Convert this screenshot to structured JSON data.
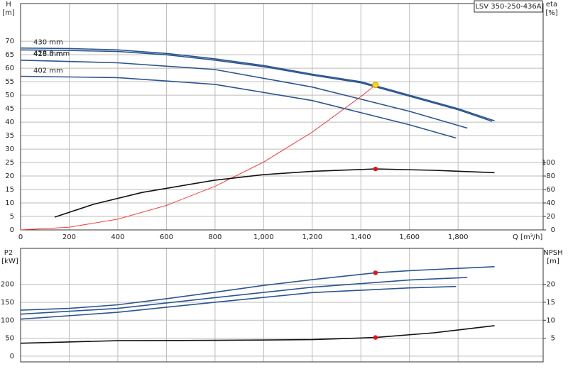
{
  "chart_data": [
    {
      "type": "line",
      "annotation": "LSV 350-250-436A",
      "xlabel": "Q [m³/h]",
      "ylabel": "H",
      "yunit": "[m]",
      "y2label": "eta",
      "y2unit": "[%]",
      "xlim": [
        0,
        2150
      ],
      "xticks": [
        0,
        200,
        400,
        600,
        800,
        {
          "value": 1000,
          "label": "1,000"
        },
        {
          "value": 1200,
          "label": "1,200"
        },
        {
          "value": 1400,
          "label": "1,400"
        },
        {
          "value": 1600,
          "label": "1,600"
        },
        {
          "value": 1800,
          "label": "1,800"
        }
      ],
      "ylim": [
        0,
        84
      ],
      "yticks": [
        0,
        5,
        10,
        15,
        20,
        25,
        30,
        35,
        40,
        45,
        50,
        55,
        60,
        65,
        70
      ],
      "y2lim": [
        0,
        336
      ],
      "y2ticks": [
        0,
        20,
        40,
        60,
        80,
        100
      ],
      "grid": true,
      "series": [
        {
          "name": "430 mm",
          "color": "#2b5590",
          "x": [
            0,
            200,
            400,
            600,
            800,
            1000,
            1200,
            1400,
            1600,
            1800,
            1950
          ],
          "values": [
            67.5,
            67.3,
            66.8,
            65.5,
            63.5,
            61,
            57.8,
            55,
            50,
            45,
            40.5
          ]
        },
        {
          "name": "428.8 mm",
          "color": "#2b5590",
          "x": [
            0,
            200,
            400,
            600,
            800,
            1000,
            1200,
            1400,
            1600,
            1800,
            1940
          ],
          "values": [
            66.8,
            66.6,
            66.2,
            65,
            63,
            60.6,
            57.4,
            54.6,
            49.6,
            44.6,
            40.3
          ]
        },
        {
          "name": "418 mm",
          "color": "#2b5590",
          "x": [
            0,
            400,
            800,
            1200,
            1600,
            1838
          ],
          "values": [
            63,
            62,
            59.5,
            53,
            44,
            37.8
          ]
        },
        {
          "name": "402 mm",
          "color": "#2b5590",
          "x": [
            0,
            400,
            800,
            1200,
            1600,
            1792
          ],
          "values": [
            57,
            56.5,
            54,
            48,
            39,
            34.1
          ]
        },
        {
          "color": "#ff2a2a",
          "x": [
            0,
            200,
            400,
            600,
            800,
            1000,
            1200,
            1400,
            1460
          ],
          "values": [
            0,
            1,
            4,
            9.1,
            16.2,
            25.2,
            36.3,
            49.5,
            53.8
          ]
        },
        {
          "color": "#111111",
          "axis": "y2",
          "x": [
            140,
            300,
            500,
            793,
            1000,
            1200,
            1460,
            1700,
            1950
          ],
          "values": [
            19,
            38,
            55.6,
            73.5,
            82,
            87,
            90.5,
            88.5,
            85
          ]
        }
      ],
      "points": [
        {
          "color": "#ffd700",
          "x": 1460,
          "y": 53.8
        },
        {
          "color": "#ee1111",
          "axis": "y2",
          "x": 1460,
          "y": 90.5
        }
      ]
    },
    {
      "type": "line",
      "ylabel": "P2",
      "yunit": "[kW]",
      "y2label": "NPSH",
      "y2unit": "[m]",
      "xlim": [
        0,
        2150
      ],
      "ylim": [
        -16,
        300
      ],
      "yticks": [
        0,
        50,
        100,
        150,
        200
      ],
      "y2lim": [
        -1.6,
        30
      ],
      "y2ticks": [
        5,
        10,
        15,
        20
      ],
      "xgrid": [
        0,
        200,
        400,
        600,
        800,
        1000,
        1200,
        1400,
        1600,
        1800
      ],
      "grid": true,
      "series": [
        {
          "color": "#2b5590",
          "x": [
            0,
            200,
            400,
            600,
            800,
            1000,
            1200,
            1460,
            1600,
            1950
          ],
          "values": [
            128,
            133,
            143,
            160,
            178,
            197,
            213,
            232,
            238,
            249
          ]
        },
        {
          "color": "#2b5590",
          "x": [
            0,
            400,
            800,
            1200,
            1600,
            1838
          ],
          "values": [
            117,
            133,
            163,
            192,
            212,
            219
          ]
        },
        {
          "color": "#2b5590",
          "x": [
            0,
            400,
            800,
            1200,
            1600,
            1792
          ],
          "values": [
            103,
            122,
            150,
            177,
            190,
            194
          ]
        },
        {
          "color": "#111111",
          "axis": "y2",
          "x": [
            0,
            400,
            800,
            1200,
            1460,
            1700,
            1950
          ],
          "values": [
            3.6,
            4.3,
            4.4,
            4.6,
            5.2,
            6.5,
            8.5
          ]
        }
      ],
      "points": [
        {
          "color": "#ee1111",
          "x": 1460,
          "y": 232
        },
        {
          "color": "#ee1111",
          "axis": "y2",
          "x": 1460,
          "y": 5.2
        }
      ]
    }
  ]
}
